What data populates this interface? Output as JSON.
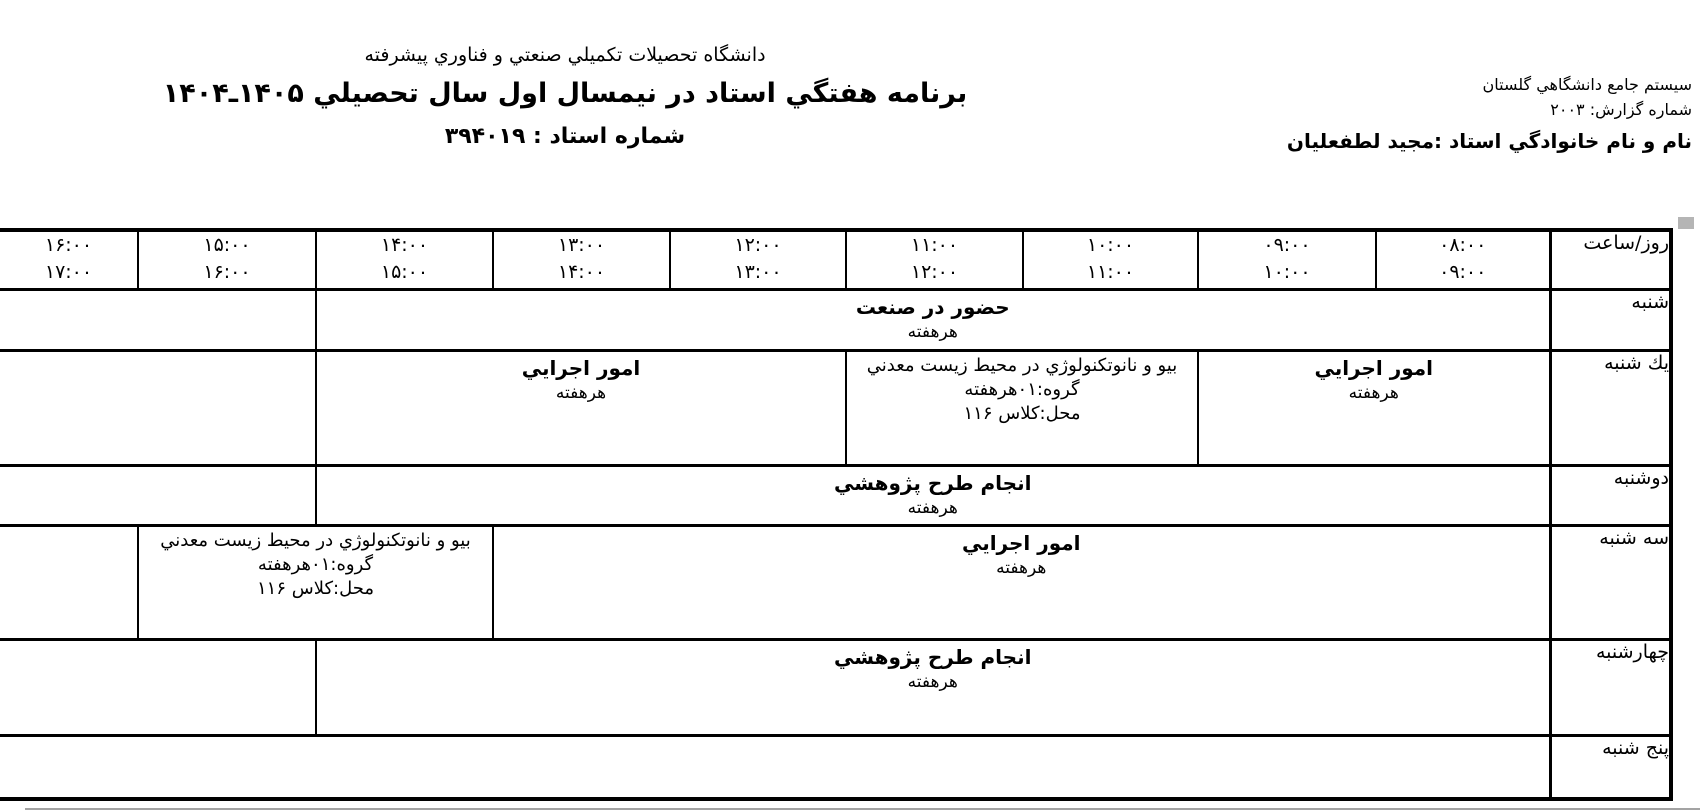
{
  "header": {
    "university": "دانشگاه تحصيلات تكميلي صنعتي و فناوري پيشرفته",
    "report_title": "برنامه هفتگي استاد در نيمسال اول سال تحصيلي ۱۴۰۵ـ۱۴۰۴",
    "professor_number_line": "شماره استاد : ۳۹۴۰۱۹",
    "system_name": "سيستم جامع دانشگاهي گلستان",
    "report_number_line": "شماره گزارش: ۲۰۰۳",
    "professor_name_line": "نام و نام خانوادگي استاد :مجيد لطفعليان"
  },
  "table": {
    "corner_header": "روز/ساعت",
    "time_slots": [
      {
        "from": "۰۸:۰۰",
        "to": "۰۹:۰۰"
      },
      {
        "from": "۰۹:۰۰",
        "to": "۱۰:۰۰"
      },
      {
        "from": "۱۰:۰۰",
        "to": "۱۱:۰۰"
      },
      {
        "from": "۱۱:۰۰",
        "to": "۱۲:۰۰"
      },
      {
        "from": "۱۲:۰۰",
        "to": "۱۳:۰۰"
      },
      {
        "from": "۱۳:۰۰",
        "to": "۱۴:۰۰"
      },
      {
        "from": "۱۴:۰۰",
        "to": "۱۵:۰۰"
      },
      {
        "from": "۱۵:۰۰",
        "to": "۱۶:۰۰"
      },
      {
        "from": "۱۶:۰۰",
        "to": "۱۷:۰۰"
      }
    ],
    "days": [
      {
        "label": "شنبه",
        "cells": [
          {
            "span": 7,
            "title": "حضور در صنعت",
            "sub": "هرهفته"
          },
          {
            "span": 2
          }
        ]
      },
      {
        "label": "يك شنبه",
        "cells": [
          {
            "span": 2,
            "title": "امور اجرايي",
            "sub": "هرهفته"
          },
          {
            "span": 2,
            "course": {
              "name": "بيو و نانوتكنولوژي در محيط زيست معدني",
              "group_line": "گروه:۰۱هرهفته",
              "location_line": "محل:كلاس ۱۱۶"
            }
          },
          {
            "span": 3,
            "title": "امور اجرايي",
            "sub": "هرهفته"
          },
          {
            "span": 2
          }
        ]
      },
      {
        "label": "دوشنبه",
        "cells": [
          {
            "span": 7,
            "title": "انجام طرح پژوهشي",
            "sub": "هرهفته"
          },
          {
            "span": 2
          }
        ]
      },
      {
        "label": "سه شنبه",
        "cells": [
          {
            "span": 6,
            "title": "امور اجرايي",
            "sub": "هرهفته"
          },
          {
            "span": 2,
            "course": {
              "name": "بيو و نانوتكنولوژي در محيط زيست معدني",
              "group_line": "گروه:۰۱هرهفته",
              "location_line": "محل:كلاس ۱۱۶"
            }
          },
          {
            "span": 1
          }
        ]
      },
      {
        "label": "چهارشنبه",
        "cells": [
          {
            "span": 7,
            "title": "انجام طرح پژوهشي",
            "sub": "هرهفته"
          },
          {
            "span": 2
          }
        ]
      },
      {
        "label": "پنج شنبه",
        "cells": [
          {
            "span": 9
          }
        ]
      }
    ]
  },
  "colors": {
    "border": "#000000",
    "background": "#ffffff",
    "artifact_gray": "#b5b5b5"
  }
}
